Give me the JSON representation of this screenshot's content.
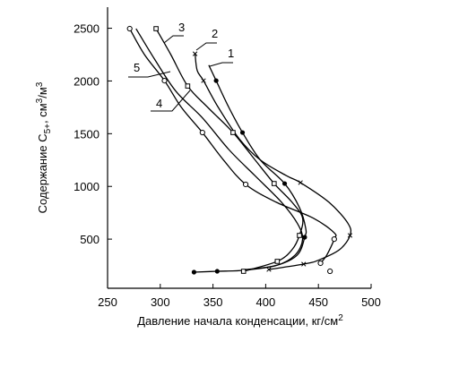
{
  "chart_data": {
    "type": "line",
    "x_label": [
      "Давление начала конденсации, кг/см",
      "2"
    ],
    "y_label": [
      "Содержание C",
      "5+",
      ", см",
      "3",
      "/м",
      "3"
    ],
    "xlim": [
      250,
      500
    ],
    "xticks": [
      250,
      300,
      350,
      400,
      450,
      500
    ],
    "ylim": [
      0,
      2700
    ],
    "yticks": [
      500,
      1000,
      1500,
      2000,
      2500
    ],
    "color": "#000000",
    "series": [
      {
        "name": "1",
        "marker": "dot",
        "x": [
          346,
          353,
          365,
          378,
          395,
          418,
          432,
          438,
          437,
          430,
          410,
          380,
          354,
          332
        ],
        "y": [
          2150,
          2003,
          1750,
          1511,
          1250,
          1027,
          800,
          600,
          518,
          350,
          250,
          205,
          195,
          187
        ],
        "points": {
          "x": [
            353,
            378,
            418,
            437,
            354,
            332
          ],
          "y": [
            2003,
            1511,
            1027,
            518,
            195,
            187
          ]
        }
      },
      {
        "name": "2",
        "marker": "cross",
        "x": [
          333,
          335,
          341,
          355,
          375,
          395,
          420,
          433,
          460,
          478,
          480,
          470,
          450,
          436,
          403
        ],
        "y": [
          2260,
          2100,
          2003,
          1750,
          1450,
          1250,
          1100,
          1036,
          850,
          650,
          535,
          400,
          300,
          263,
          212
        ],
        "points": {
          "x": [
            333,
            341,
            433,
            480,
            436,
            403
          ],
          "y": [
            2258,
            2003,
            1036,
            535,
            263,
            212
          ]
        }
      },
      {
        "name": "3",
        "marker": "square",
        "x": [
          296,
          310,
          326,
          345,
          369,
          390,
          408,
          425,
          435,
          432,
          425,
          411,
          379
        ],
        "y": [
          2496,
          2250,
          1952,
          1750,
          1511,
          1250,
          1027,
          850,
          700,
          535,
          400,
          289,
          195
        ],
        "points": {
          "x": [
            296,
            326,
            369,
            408,
            432,
            411,
            379
          ],
          "y": [
            2496,
            1952,
            1511,
            1027,
            535,
            289,
            195
          ]
        }
      },
      {
        "name": "4",
        "marker": "circle",
        "x": [
          271,
          285,
          304,
          320,
          340,
          360,
          381,
          410,
          445,
          465,
          465,
          458,
          452
        ],
        "y": [
          2496,
          2250,
          2003,
          1750,
          1511,
          1250,
          1019,
          850,
          700,
          560,
          500,
          350,
          272
        ],
        "points": {
          "x": [
            271,
            304,
            340,
            381,
            465,
            452,
            461
          ],
          "y": [
            2496,
            2003,
            1511,
            1019,
            500,
            272,
            195
          ]
        }
      },
      {
        "name": "5",
        "marker": "none",
        "x": [
          277,
          295,
          315,
          340,
          365,
          390,
          415,
          430,
          435,
          428,
          410,
          380
        ],
        "y": [
          2496,
          2200,
          1900,
          1650,
          1350,
          1100,
          850,
          650,
          500,
          350,
          250,
          210
        ]
      }
    ]
  }
}
